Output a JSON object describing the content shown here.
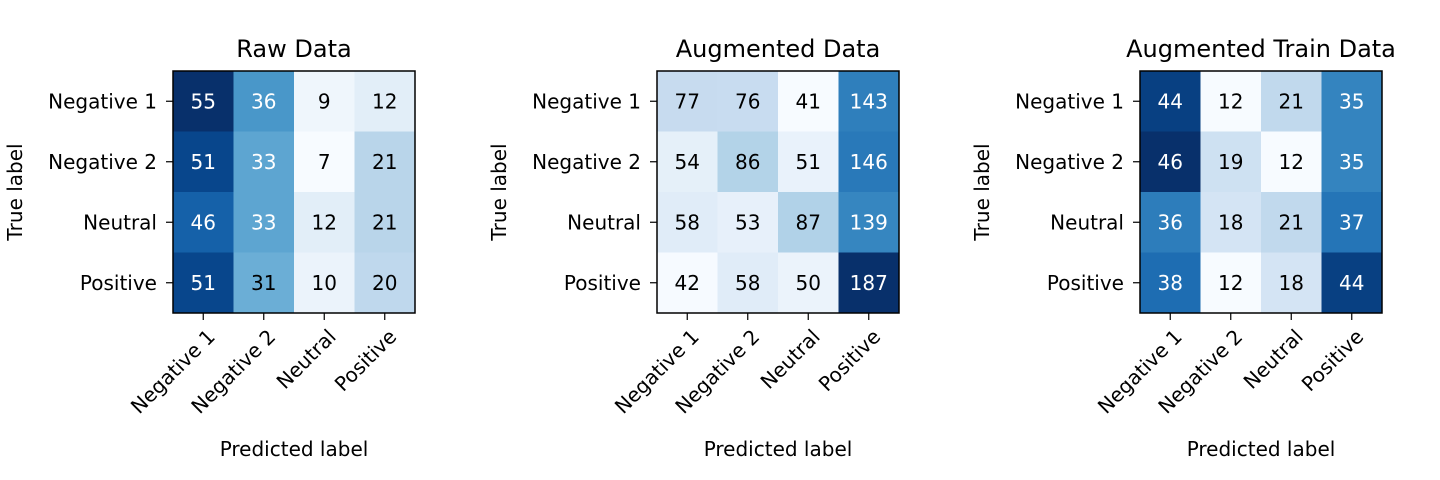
{
  "chart_data": [
    {
      "type": "heatmap",
      "title": "Raw Data",
      "xlabel": "Predicted label",
      "ylabel": "True label",
      "x_categories": [
        "Negative 1",
        "Negative 2",
        "Neutral",
        "Positive"
      ],
      "y_categories": [
        "Negative 1",
        "Negative 2",
        "Neutral",
        "Positive"
      ],
      "colormap": "Blues",
      "values": [
        [
          55,
          36,
          9,
          12
        ],
        [
          51,
          33,
          7,
          21
        ],
        [
          46,
          33,
          12,
          21
        ],
        [
          51,
          31,
          10,
          20
        ]
      ]
    },
    {
      "type": "heatmap",
      "title": "Augmented Data",
      "xlabel": "Predicted label",
      "ylabel": "True label",
      "x_categories": [
        "Negative 1",
        "Negative 2",
        "Neutral",
        "Positive"
      ],
      "y_categories": [
        "Negative 1",
        "Negative 2",
        "Neutral",
        "Positive"
      ],
      "colormap": "Blues",
      "values": [
        [
          77,
          76,
          41,
          143
        ],
        [
          54,
          86,
          51,
          146
        ],
        [
          58,
          53,
          87,
          139
        ],
        [
          42,
          58,
          50,
          187
        ]
      ]
    },
    {
      "type": "heatmap",
      "title": "Augmented Train Data",
      "xlabel": "Predicted label",
      "ylabel": "True label",
      "x_categories": [
        "Negative 1",
        "Negative 2",
        "Neutral",
        "Positive"
      ],
      "y_categories": [
        "Negative 1",
        "Negative 2",
        "Neutral",
        "Positive"
      ],
      "colormap": "Blues",
      "values": [
        [
          44,
          12,
          21,
          35
        ],
        [
          46,
          19,
          12,
          35
        ],
        [
          36,
          18,
          21,
          37
        ],
        [
          38,
          12,
          18,
          44
        ]
      ]
    }
  ]
}
